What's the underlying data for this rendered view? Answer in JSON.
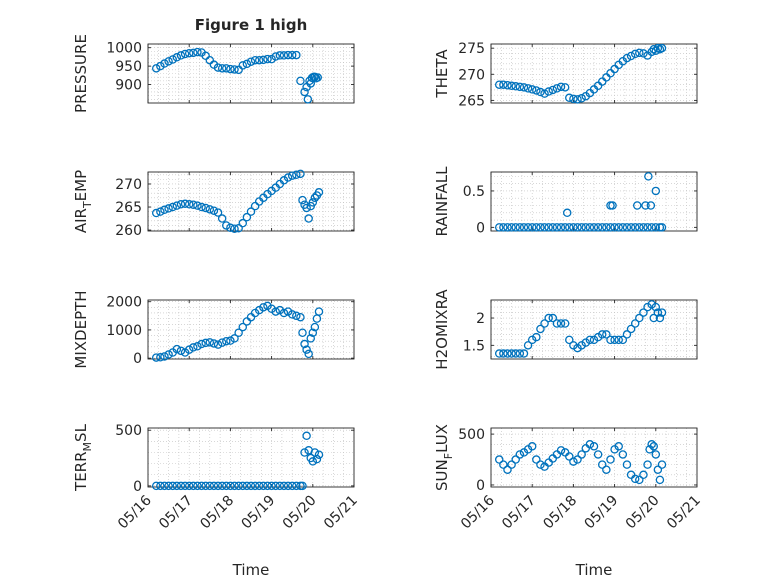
{
  "title": "Figure 1 high",
  "marker_color": "#0072BD",
  "xlabel": "Time",
  "x_tick_labels": [
    "05/16",
    "05/17",
    "05/18",
    "05/19",
    "05/20",
    "05/21"
  ],
  "chart_data": [
    {
      "type": "scatter",
      "name": "pressure",
      "ylabel": "PRESSURE",
      "ylim": [
        850,
        1010
      ],
      "yticks": [
        900,
        950,
        1000
      ],
      "grid": true,
      "x": [
        0.2,
        0.3,
        0.4,
        0.5,
        0.6,
        0.7,
        0.8,
        0.9,
        1.0,
        1.1,
        1.2,
        1.3,
        1.4,
        1.5,
        1.6,
        1.7,
        1.8,
        1.9,
        2.0,
        2.1,
        2.2,
        2.3,
        2.4,
        2.5,
        2.6,
        2.7,
        2.8,
        2.9,
        3.0,
        3.1,
        3.2,
        3.3,
        3.4,
        3.5,
        3.6,
        3.7,
        3.8,
        3.85,
        3.88,
        3.92,
        3.95,
        3.98,
        4.02,
        4.05,
        4.08,
        4.12
      ],
      "y": [
        944,
        950,
        957,
        963,
        968,
        974,
        979,
        983,
        985,
        986,
        988,
        987,
        978,
        966,
        954,
        946,
        944,
        944,
        942,
        941,
        940,
        952,
        956,
        962,
        966,
        966,
        967,
        969,
        969,
        976,
        979,
        979,
        980,
        980,
        980,
        910,
        880,
        893,
        860,
        910,
        903,
        918,
        921,
        921,
        917,
        919
      ]
    },
    {
      "type": "scatter",
      "name": "theta",
      "ylabel": "THETA",
      "ylim": [
        264.5,
        275.8
      ],
      "yticks": [
        265,
        270,
        275
      ],
      "grid": true,
      "x": [
        0.2,
        0.3,
        0.4,
        0.5,
        0.6,
        0.7,
        0.8,
        0.9,
        1.0,
        1.1,
        1.2,
        1.3,
        1.4,
        1.5,
        1.6,
        1.7,
        1.8,
        1.9,
        2.0,
        2.1,
        2.2,
        2.3,
        2.4,
        2.5,
        2.6,
        2.7,
        2.8,
        2.9,
        3.0,
        3.1,
        3.2,
        3.3,
        3.4,
        3.5,
        3.6,
        3.7,
        3.8,
        3.9,
        3.95,
        4.0,
        4.05,
        4.1,
        4.15
      ],
      "y": [
        268.0,
        268.0,
        267.9,
        267.8,
        267.7,
        267.6,
        267.5,
        267.3,
        267.1,
        266.9,
        266.6,
        266.3,
        266.7,
        267.0,
        267.3,
        267.6,
        267.5,
        265.5,
        265.3,
        265.2,
        265.4,
        265.8,
        266.4,
        267.1,
        267.8,
        268.6,
        269.4,
        270.2,
        271.0,
        271.8,
        272.5,
        273.1,
        273.5,
        273.9,
        274.1,
        274.0,
        273.6,
        274.3,
        274.8,
        274.5,
        275.0,
        274.8,
        275.0
      ]
    },
    {
      "type": "scatter",
      "name": "air_temp",
      "ylabel": "AIR_TEMP",
      "ylim": [
        259.8,
        272.6
      ],
      "yticks": [
        260,
        265,
        270
      ],
      "grid": true,
      "x": [
        0.2,
        0.3,
        0.4,
        0.5,
        0.6,
        0.7,
        0.8,
        0.9,
        1.0,
        1.1,
        1.2,
        1.3,
        1.4,
        1.5,
        1.6,
        1.7,
        1.8,
        1.9,
        2.0,
        2.1,
        2.2,
        2.3,
        2.4,
        2.5,
        2.6,
        2.7,
        2.8,
        2.9,
        3.0,
        3.1,
        3.2,
        3.3,
        3.4,
        3.5,
        3.6,
        3.7,
        3.75,
        3.8,
        3.85,
        3.9,
        3.95,
        4.0,
        4.05,
        4.1,
        4.15
      ],
      "y": [
        263.7,
        264.0,
        264.4,
        264.7,
        265.0,
        265.3,
        265.6,
        265.7,
        265.6,
        265.5,
        265.3,
        265.0,
        264.8,
        264.5,
        264.2,
        263.8,
        262.5,
        261.0,
        260.5,
        260.3,
        260.4,
        261.5,
        262.8,
        264.0,
        265.2,
        266.2,
        267.0,
        267.8,
        268.5,
        269.2,
        270.0,
        270.8,
        271.4,
        271.8,
        272.0,
        272.2,
        266.5,
        265.5,
        264.8,
        262.5,
        265.2,
        266.0,
        267.0,
        267.5,
        268.2
      ]
    },
    {
      "type": "scatter",
      "name": "rainfall",
      "ylabel": "RAINFALL",
      "ylim": [
        -0.05,
        0.76
      ],
      "yticks": [
        0,
        0.5
      ],
      "grid": true,
      "x": [
        0.2,
        0.3,
        0.4,
        0.5,
        0.6,
        0.7,
        0.8,
        0.9,
        1.0,
        1.1,
        1.2,
        1.3,
        1.4,
        1.5,
        1.6,
        1.7,
        1.8,
        1.9,
        2.0,
        2.1,
        2.2,
        2.3,
        2.4,
        2.5,
        2.6,
        2.7,
        2.8,
        2.9,
        3.0,
        3.1,
        3.2,
        3.3,
        3.4,
        3.5,
        3.6,
        3.7,
        3.8,
        3.9,
        4.0,
        4.1,
        4.15,
        1.85,
        2.9,
        2.95,
        3.55,
        3.75,
        3.82,
        3.88,
        4.0
      ],
      "y": [
        0,
        0,
        0,
        0,
        0,
        0,
        0,
        0,
        0,
        0,
        0,
        0,
        0,
        0,
        0,
        0,
        0,
        0,
        0,
        0,
        0,
        0,
        0,
        0,
        0,
        0,
        0,
        0,
        0,
        0,
        0,
        0,
        0,
        0,
        0,
        0,
        0,
        0,
        0,
        0,
        0,
        0.2,
        0.3,
        0.3,
        0.3,
        0.3,
        0.7,
        0.3,
        0.5
      ]
    },
    {
      "type": "scatter",
      "name": "mixdepth",
      "ylabel": "MIXDEPTH",
      "ylim": [
        -30,
        2060
      ],
      "yticks": [
        0,
        1000,
        2000
      ],
      "grid": true,
      "x": [
        0.2,
        0.3,
        0.4,
        0.5,
        0.6,
        0.7,
        0.8,
        0.9,
        1.0,
        1.1,
        1.2,
        1.3,
        1.4,
        1.5,
        1.6,
        1.7,
        1.8,
        1.9,
        2.0,
        2.1,
        2.2,
        2.3,
        2.4,
        2.5,
        2.6,
        2.7,
        2.8,
        2.9,
        3.0,
        3.1,
        3.2,
        3.3,
        3.4,
        3.5,
        3.6,
        3.7,
        3.75,
        3.8,
        3.85,
        3.9,
        3.95,
        4.0,
        4.05,
        4.1,
        4.15
      ],
      "y": [
        20,
        30,
        60,
        130,
        200,
        320,
        260,
        200,
        300,
        380,
        420,
        500,
        540,
        560,
        520,
        480,
        550,
        600,
        620,
        700,
        900,
        1100,
        1300,
        1450,
        1600,
        1700,
        1800,
        1850,
        1750,
        1650,
        1700,
        1600,
        1650,
        1550,
        1500,
        1450,
        900,
        500,
        300,
        150,
        700,
        900,
        1100,
        1400,
        1650
      ]
    },
    {
      "type": "scatter",
      "name": "h2omixra",
      "ylabel": "H2OMIXRA",
      "ylim": [
        1.25,
        2.33
      ],
      "yticks": [
        1.5,
        2
      ],
      "grid": true,
      "x": [
        0.2,
        0.3,
        0.4,
        0.5,
        0.6,
        0.7,
        0.8,
        0.9,
        1.0,
        1.1,
        1.2,
        1.3,
        1.4,
        1.5,
        1.6,
        1.7,
        1.8,
        1.9,
        2.0,
        2.1,
        2.2,
        2.3,
        2.4,
        2.5,
        2.6,
        2.7,
        2.8,
        2.9,
        3.0,
        3.1,
        3.2,
        3.3,
        3.4,
        3.5,
        3.6,
        3.7,
        3.8,
        3.9,
        3.95,
        4.0,
        4.05,
        4.1,
        4.15
      ],
      "y": [
        1.35,
        1.35,
        1.35,
        1.35,
        1.35,
        1.35,
        1.35,
        1.5,
        1.6,
        1.65,
        1.8,
        1.9,
        2.0,
        2.0,
        1.9,
        1.9,
        1.9,
        1.6,
        1.5,
        1.45,
        1.5,
        1.55,
        1.6,
        1.6,
        1.65,
        1.7,
        1.7,
        1.6,
        1.6,
        1.6,
        1.6,
        1.7,
        1.8,
        1.9,
        2.0,
        2.1,
        2.2,
        2.25,
        2.0,
        2.2,
        2.1,
        2.0,
        2.1
      ]
    },
    {
      "type": "scatter",
      "name": "terr_msl",
      "ylabel": "TERR_MSL",
      "ylim": [
        -10,
        520
      ],
      "yticks": [
        0,
        500
      ],
      "grid": true,
      "x": [
        0.2,
        0.3,
        0.4,
        0.5,
        0.6,
        0.7,
        0.8,
        0.9,
        1.0,
        1.1,
        1.2,
        1.3,
        1.4,
        1.5,
        1.6,
        1.7,
        1.8,
        1.9,
        2.0,
        2.1,
        2.2,
        2.3,
        2.4,
        2.5,
        2.6,
        2.7,
        2.8,
        2.9,
        3.0,
        3.1,
        3.2,
        3.3,
        3.4,
        3.5,
        3.6,
        3.7,
        3.75,
        3.8,
        3.85,
        3.9,
        3.95,
        4.0,
        4.05,
        4.1,
        4.15
      ],
      "y": [
        0,
        0,
        0,
        0,
        0,
        0,
        0,
        0,
        0,
        0,
        0,
        0,
        0,
        0,
        0,
        0,
        0,
        0,
        0,
        0,
        0,
        0,
        0,
        0,
        0,
        0,
        0,
        0,
        0,
        0,
        0,
        0,
        0,
        0,
        0,
        0,
        0,
        300,
        450,
        320,
        250,
        220,
        300,
        240,
        280
      ]
    },
    {
      "type": "scatter",
      "name": "sun_flux",
      "ylabel": "SUN_FLUX",
      "ylim": [
        -20,
        560
      ],
      "yticks": [
        0,
        500
      ],
      "grid": true,
      "x": [
        0.2,
        0.3,
        0.4,
        0.5,
        0.6,
        0.7,
        0.8,
        0.9,
        1.0,
        1.1,
        1.2,
        1.3,
        1.4,
        1.5,
        1.6,
        1.7,
        1.8,
        1.9,
        2.0,
        2.1,
        2.2,
        2.3,
        2.4,
        2.5,
        2.6,
        2.7,
        2.8,
        2.9,
        3.0,
        3.1,
        3.2,
        3.3,
        3.4,
        3.5,
        3.6,
        3.7,
        3.8,
        3.85,
        3.9,
        3.95,
        4.0,
        4.05,
        4.1,
        4.15
      ],
      "y": [
        250,
        200,
        150,
        200,
        250,
        300,
        320,
        350,
        380,
        250,
        200,
        180,
        220,
        260,
        300,
        340,
        320,
        280,
        230,
        250,
        300,
        360,
        400,
        380,
        300,
        200,
        150,
        250,
        350,
        380,
        300,
        200,
        100,
        60,
        50,
        100,
        200,
        350,
        400,
        380,
        300,
        150,
        50,
        200
      ]
    }
  ]
}
